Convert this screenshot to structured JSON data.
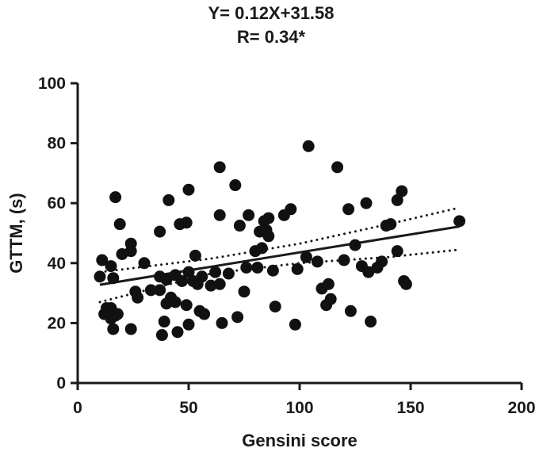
{
  "chart_data": {
    "type": "scatter",
    "title": "Y= 0.12X+31.58",
    "subtitle": "R= 0.34*",
    "xlabel": "Gensini score",
    "ylabel": "GTTM, (s)",
    "xlim": [
      0,
      200
    ],
    "ylim": [
      0,
      100
    ],
    "xticks": [
      "0",
      "50",
      "100",
      "150",
      "200"
    ],
    "yticks": [
      "0",
      "20",
      "40",
      "60",
      "80",
      "100"
    ],
    "grid": false,
    "point_color": "#111111",
    "regression": {
      "slope": 0.12,
      "intercept": 31.58,
      "x_range": [
        10,
        172
      ]
    },
    "confidence_band": {
      "upper": [
        [
          10,
          37
        ],
        [
          60,
          41.5
        ],
        [
          100,
          46.5
        ],
        [
          140,
          53
        ],
        [
          172,
          58.5
        ]
      ],
      "lower": [
        [
          10,
          27
        ],
        [
          60,
          36.5
        ],
        [
          100,
          40
        ],
        [
          140,
          42
        ],
        [
          172,
          44.5
        ]
      ]
    },
    "points": [
      {
        "x": 10,
        "y": 35.5
      },
      {
        "x": 11,
        "y": 41
      },
      {
        "x": 12,
        "y": 23
      },
      {
        "x": 13,
        "y": 25
      },
      {
        "x": 14,
        "y": 23.5
      },
      {
        "x": 15,
        "y": 39
      },
      {
        "x": 15,
        "y": 25
      },
      {
        "x": 15,
        "y": 21.5
      },
      {
        "x": 16,
        "y": 35
      },
      {
        "x": 16,
        "y": 18
      },
      {
        "x": 17,
        "y": 62
      },
      {
        "x": 17,
        "y": 22.5
      },
      {
        "x": 18,
        "y": 23
      },
      {
        "x": 19,
        "y": 53
      },
      {
        "x": 20,
        "y": 43
      },
      {
        "x": 24,
        "y": 44
      },
      {
        "x": 24,
        "y": 46.5
      },
      {
        "x": 24,
        "y": 18
      },
      {
        "x": 26,
        "y": 30.5
      },
      {
        "x": 27,
        "y": 28.5
      },
      {
        "x": 30,
        "y": 40
      },
      {
        "x": 33,
        "y": 31
      },
      {
        "x": 37,
        "y": 50.5
      },
      {
        "x": 37,
        "y": 35.5
      },
      {
        "x": 37,
        "y": 31
      },
      {
        "x": 38,
        "y": 16
      },
      {
        "x": 39,
        "y": 20.5
      },
      {
        "x": 40,
        "y": 26.5
      },
      {
        "x": 40,
        "y": 34.5
      },
      {
        "x": 41,
        "y": 61
      },
      {
        "x": 42,
        "y": 28.5
      },
      {
        "x": 44,
        "y": 36
      },
      {
        "x": 44,
        "y": 27
      },
      {
        "x": 45,
        "y": 17
      },
      {
        "x": 46,
        "y": 53
      },
      {
        "x": 47,
        "y": 34
      },
      {
        "x": 49,
        "y": 53.5
      },
      {
        "x": 49,
        "y": 26
      },
      {
        "x": 50,
        "y": 64.5
      },
      {
        "x": 50,
        "y": 19.5
      },
      {
        "x": 50,
        "y": 37
      },
      {
        "x": 52,
        "y": 34
      },
      {
        "x": 53,
        "y": 42.5
      },
      {
        "x": 54,
        "y": 33
      },
      {
        "x": 55,
        "y": 24
      },
      {
        "x": 56,
        "y": 35.5
      },
      {
        "x": 57,
        "y": 23
      },
      {
        "x": 60,
        "y": 32.5
      },
      {
        "x": 62,
        "y": 37
      },
      {
        "x": 64,
        "y": 72
      },
      {
        "x": 64,
        "y": 56
      },
      {
        "x": 64,
        "y": 33
      },
      {
        "x": 65,
        "y": 20
      },
      {
        "x": 68,
        "y": 36.5
      },
      {
        "x": 71,
        "y": 66
      },
      {
        "x": 72,
        "y": 22
      },
      {
        "x": 73,
        "y": 52.5
      },
      {
        "x": 75,
        "y": 30.5
      },
      {
        "x": 77,
        "y": 56
      },
      {
        "x": 76,
        "y": 38.5
      },
      {
        "x": 80,
        "y": 44
      },
      {
        "x": 81,
        "y": 38.5
      },
      {
        "x": 82,
        "y": 50.5
      },
      {
        "x": 83,
        "y": 45
      },
      {
        "x": 84,
        "y": 54
      },
      {
        "x": 85,
        "y": 51
      },
      {
        "x": 86,
        "y": 49
      },
      {
        "x": 86,
        "y": 55
      },
      {
        "x": 88,
        "y": 37.5
      },
      {
        "x": 89,
        "y": 25.5
      },
      {
        "x": 93,
        "y": 56
      },
      {
        "x": 96,
        "y": 58
      },
      {
        "x": 98,
        "y": 19.5
      },
      {
        "x": 99,
        "y": 38
      },
      {
        "x": 103,
        "y": 42
      },
      {
        "x": 104,
        "y": 79
      },
      {
        "x": 108,
        "y": 40.5
      },
      {
        "x": 110,
        "y": 31.5
      },
      {
        "x": 112,
        "y": 26
      },
      {
        "x": 113,
        "y": 33
      },
      {
        "x": 114,
        "y": 28
      },
      {
        "x": 117,
        "y": 72
      },
      {
        "x": 120,
        "y": 41
      },
      {
        "x": 122,
        "y": 58
      },
      {
        "x": 123,
        "y": 24
      },
      {
        "x": 125,
        "y": 46
      },
      {
        "x": 128,
        "y": 39
      },
      {
        "x": 130,
        "y": 60
      },
      {
        "x": 131,
        "y": 37
      },
      {
        "x": 132,
        "y": 20.5
      },
      {
        "x": 135,
        "y": 38.5
      },
      {
        "x": 137,
        "y": 40.5
      },
      {
        "x": 139,
        "y": 52.5
      },
      {
        "x": 141,
        "y": 53
      },
      {
        "x": 144,
        "y": 61
      },
      {
        "x": 144,
        "y": 44
      },
      {
        "x": 146,
        "y": 64
      },
      {
        "x": 147,
        "y": 34
      },
      {
        "x": 148,
        "y": 33
      },
      {
        "x": 172,
        "y": 54
      }
    ]
  }
}
